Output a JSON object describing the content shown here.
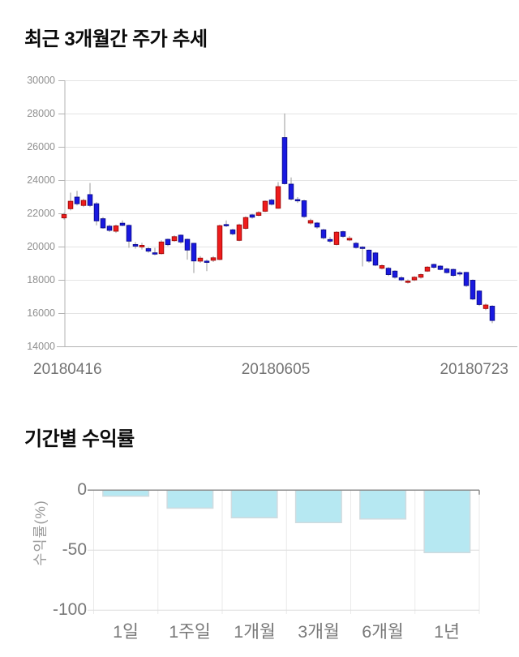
{
  "chart_data": [
    {
      "id": "price-candlestick",
      "type": "candlestick",
      "title": "최근 3개월간 주가 추세",
      "xlabel": "",
      "ylabel": "",
      "x_tick_labels": [
        "20180416",
        "20180605",
        "20180723"
      ],
      "y_ticks": [
        30000,
        28000,
        26000,
        24000,
        22000,
        20000,
        18000,
        16000,
        14000
      ],
      "ylim": [
        14000,
        30000
      ],
      "grid": true,
      "up_color": "#ee1c1c",
      "up_edge_color": "#9e0808",
      "down_color": "#1919e0",
      "down_edge_color": "#0b0b8d",
      "wick_color": "#9a9a9a",
      "candles_ohlc": [
        [
          21750,
          22050,
          21650,
          21950
        ],
        [
          22300,
          23270,
          22200,
          22750
        ],
        [
          23000,
          23380,
          22500,
          22600
        ],
        [
          22500,
          22900,
          22400,
          22800
        ],
        [
          23150,
          23850,
          22400,
          22500
        ],
        [
          22600,
          22700,
          21300,
          21570
        ],
        [
          21700,
          21800,
          21100,
          21150
        ],
        [
          21250,
          21350,
          20900,
          21000
        ],
        [
          20950,
          21350,
          20850,
          21270
        ],
        [
          21430,
          21600,
          21250,
          21300
        ],
        [
          21300,
          21350,
          19950,
          20350
        ],
        [
          20150,
          20300,
          19900,
          20050
        ],
        [
          20000,
          20250,
          19850,
          20100
        ],
        [
          19900,
          20000,
          19650,
          19750
        ],
        [
          19650,
          19950,
          19500,
          19600
        ],
        [
          19600,
          20400,
          19550,
          20300
        ],
        [
          20460,
          20500,
          20050,
          20140
        ],
        [
          20380,
          20700,
          20320,
          20620
        ],
        [
          20710,
          20750,
          20200,
          20300
        ],
        [
          20460,
          20500,
          19240,
          19815
        ],
        [
          20220,
          20250,
          18430,
          19160
        ],
        [
          19150,
          19450,
          19050,
          19330
        ],
        [
          19150,
          19250,
          18550,
          19080
        ],
        [
          19200,
          19450,
          19100,
          19350
        ],
        [
          19250,
          21350,
          19200,
          21280
        ],
        [
          21350,
          21600,
          21200,
          21300
        ],
        [
          21030,
          21100,
          20700,
          20790
        ],
        [
          20400,
          21400,
          20350,
          21330
        ],
        [
          21120,
          21850,
          21050,
          21770
        ],
        [
          21930,
          22000,
          21700,
          21790
        ],
        [
          21900,
          22150,
          21850,
          22070
        ],
        [
          22150,
          22800,
          22100,
          22750
        ],
        [
          22820,
          22900,
          22500,
          22570
        ],
        [
          22330,
          23900,
          22300,
          23630
        ],
        [
          26580,
          28030,
          23750,
          23810
        ],
        [
          23780,
          24180,
          22800,
          22880
        ],
        [
          22850,
          23000,
          22650,
          22780
        ],
        [
          22780,
          22850,
          21750,
          21830
        ],
        [
          21440,
          21700,
          21350,
          21590
        ],
        [
          21440,
          21500,
          21100,
          21200
        ],
        [
          21030,
          21100,
          20450,
          20550
        ],
        [
          20450,
          20600,
          20250,
          20350
        ],
        [
          20150,
          20950,
          20100,
          20890
        ],
        [
          20920,
          20980,
          20550,
          20640
        ],
        [
          20420,
          20650,
          20350,
          20520
        ],
        [
          20220,
          20300,
          19900,
          19970
        ],
        [
          19990,
          20050,
          18830,
          19950
        ],
        [
          19810,
          19850,
          19050,
          19150
        ],
        [
          19640,
          19700,
          18850,
          18910
        ],
        [
          18720,
          18950,
          18650,
          18880
        ],
        [
          18720,
          18800,
          18250,
          18340
        ],
        [
          18550,
          18600,
          18100,
          18180
        ],
        [
          18150,
          18250,
          17950,
          18020
        ],
        [
          17870,
          18050,
          17800,
          17950
        ],
        [
          18020,
          18250,
          17950,
          18180
        ],
        [
          18180,
          18400,
          18100,
          18340
        ],
        [
          18550,
          18850,
          18500,
          18790
        ],
        [
          18950,
          19000,
          18700,
          18780
        ],
        [
          18850,
          18900,
          18600,
          18650
        ],
        [
          18680,
          18750,
          18400,
          18460
        ],
        [
          18650,
          18700,
          18200,
          18290
        ],
        [
          18450,
          18550,
          18250,
          18380
        ],
        [
          18470,
          18500,
          17600,
          17680
        ],
        [
          18000,
          18050,
          16800,
          16870
        ],
        [
          17350,
          17400,
          16450,
          16540
        ],
        [
          16300,
          16600,
          16200,
          16510
        ],
        [
          16440,
          16500,
          15420,
          15580
        ]
      ]
    },
    {
      "id": "period-returns",
      "type": "bar",
      "title": "기간별 수익률",
      "xlabel": "",
      "ylabel": "수익률(%)",
      "categories": [
        "1일",
        "1주일",
        "1개월",
        "3개월",
        "6개월",
        "1년"
      ],
      "values": [
        -5,
        -15,
        -23,
        -27,
        -24,
        -52
      ],
      "y_ticks": [
        0,
        -50,
        -100
      ],
      "ylim": [
        -100,
        0
      ],
      "grid": true,
      "legend": "none",
      "bar_color": "#b6e8f2",
      "bar_edge_color": "#d0dbdf"
    }
  ]
}
